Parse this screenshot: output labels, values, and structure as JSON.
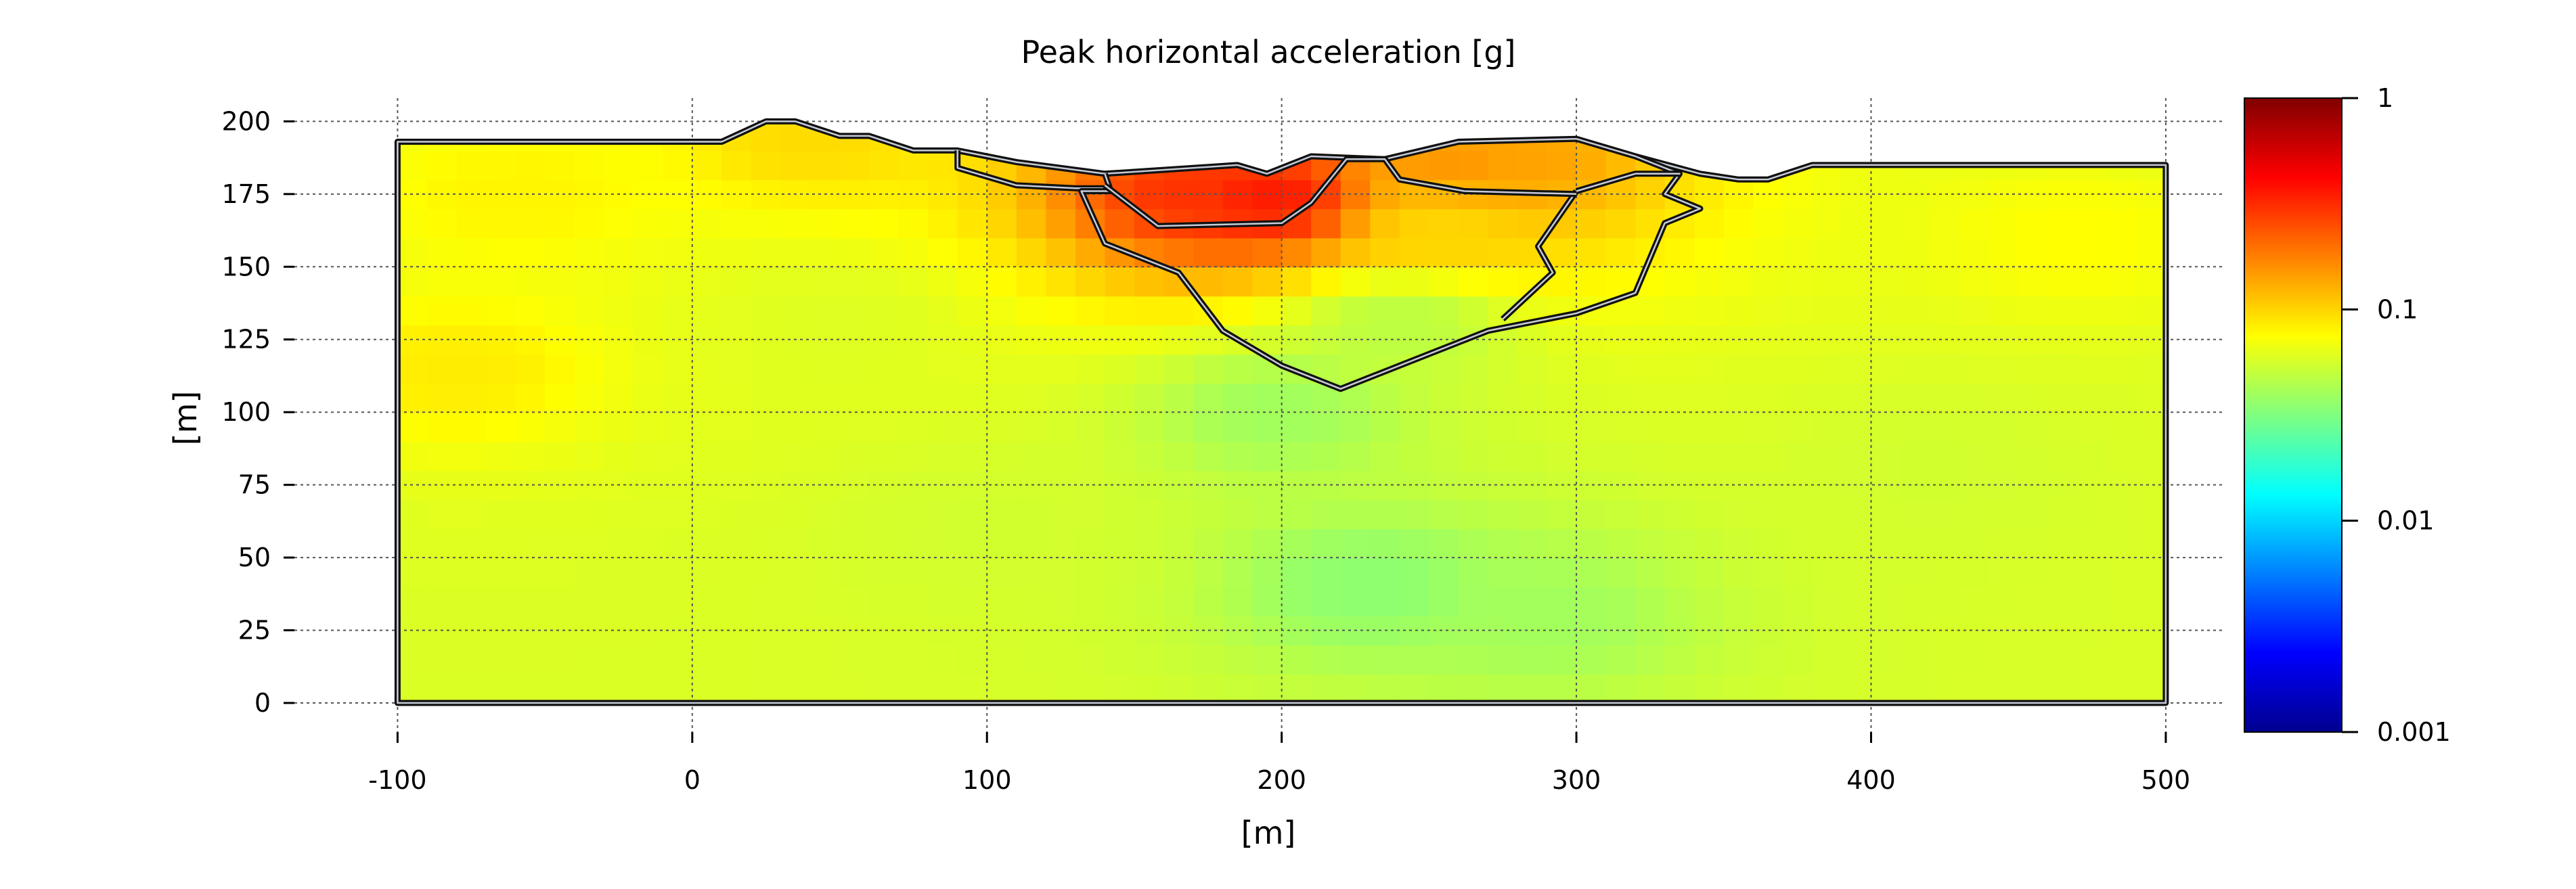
{
  "chart_data": {
    "type": "heatmap",
    "title": "Peak horizontal acceleration [g]",
    "xlabel": "[m]",
    "ylabel": "[m]",
    "xlim": [
      -135,
      520
    ],
    "ylim": [
      -10,
      208
    ],
    "x_ticks": [
      -100,
      0,
      100,
      200,
      300,
      400,
      500
    ],
    "y_ticks": [
      0,
      25,
      50,
      75,
      100,
      125,
      150,
      175,
      200
    ],
    "grid": true,
    "colorscale": "jet",
    "colorbar": {
      "scale": "log",
      "range": [
        0.001,
        1
      ],
      "ticks": [
        1,
        0.1,
        0.01,
        0.001
      ],
      "tick_labels": [
        "1",
        "0.1",
        "0.01",
        "0.001"
      ]
    },
    "domain_outline": [
      [
        -100,
        0
      ],
      [
        -100,
        193
      ],
      [
        10,
        193
      ],
      [
        25,
        200
      ],
      [
        35,
        200
      ],
      [
        50,
        195
      ],
      [
        60,
        195
      ],
      [
        75,
        190
      ],
      [
        90,
        190
      ],
      [
        110,
        186
      ],
      [
        140,
        182
      ],
      [
        185,
        185
      ],
      [
        195,
        182
      ],
      [
        210,
        188
      ],
      [
        235,
        187
      ],
      [
        260,
        193
      ],
      [
        300,
        194
      ],
      [
        320,
        188
      ],
      [
        342,
        182
      ],
      [
        355,
        180
      ],
      [
        365,
        180
      ],
      [
        380,
        185
      ],
      [
        500,
        185
      ],
      [
        500,
        0
      ]
    ],
    "inner_boundaries": [
      [
        [
          90,
          190
        ],
        [
          90,
          184
        ],
        [
          110,
          178
        ],
        [
          130,
          177
        ],
        [
          140,
          177
        ]
      ],
      [
        [
          140,
          182
        ],
        [
          142,
          176
        ],
        [
          132,
          176
        ],
        [
          140,
          158
        ],
        [
          165,
          148
        ],
        [
          180,
          128
        ],
        [
          200,
          116
        ],
        [
          220,
          108
        ],
        [
          245,
          118
        ],
        [
          270,
          128
        ],
        [
          300,
          134
        ],
        [
          320,
          141
        ],
        [
          330,
          165
        ],
        [
          342,
          170
        ],
        [
          330,
          175
        ],
        [
          335,
          182
        ],
        [
          320,
          188
        ]
      ],
      [
        [
          300,
          176
        ],
        [
          287,
          157
        ],
        [
          292,
          148
        ],
        [
          275,
          132
        ]
      ],
      [
        [
          300,
          176
        ],
        [
          320,
          182
        ],
        [
          335,
          182
        ]
      ],
      [
        [
          140,
          178
        ],
        [
          158,
          164
        ],
        [
          200,
          165
        ],
        [
          210,
          172
        ],
        [
          222,
          187
        ],
        [
          235,
          187
        ],
        [
          240,
          180
        ],
        [
          262,
          176
        ],
        [
          300,
          175
        ]
      ]
    ],
    "field": {
      "background": 0.058,
      "samples": [
        {
          "x": -80,
          "y": 115,
          "v": 0.085
        },
        {
          "x": -60,
          "y": 175,
          "v": 0.08
        },
        {
          "x": 100,
          "y": 60,
          "v": 0.055
        },
        {
          "x": 230,
          "y": 40,
          "v": 0.035
        },
        {
          "x": 290,
          "y": 30,
          "v": 0.04
        },
        {
          "x": 420,
          "y": 80,
          "v": 0.055
        },
        {
          "x": 470,
          "y": 160,
          "v": 0.075
        },
        {
          "x": 200,
          "y": 100,
          "v": 0.04
        },
        {
          "x": 240,
          "y": 130,
          "v": 0.048
        },
        {
          "x": 50,
          "y": 130,
          "v": 0.06
        },
        {
          "x": 170,
          "y": 176,
          "v": 0.3
        },
        {
          "x": 195,
          "y": 174,
          "v": 0.35
        },
        {
          "x": 260,
          "y": 185,
          "v": 0.15
        },
        {
          "x": 280,
          "y": 187,
          "v": 0.14
        },
        {
          "x": 255,
          "y": 165,
          "v": 0.1
        },
        {
          "x": 40,
          "y": 196,
          "v": 0.095
        }
      ]
    }
  }
}
